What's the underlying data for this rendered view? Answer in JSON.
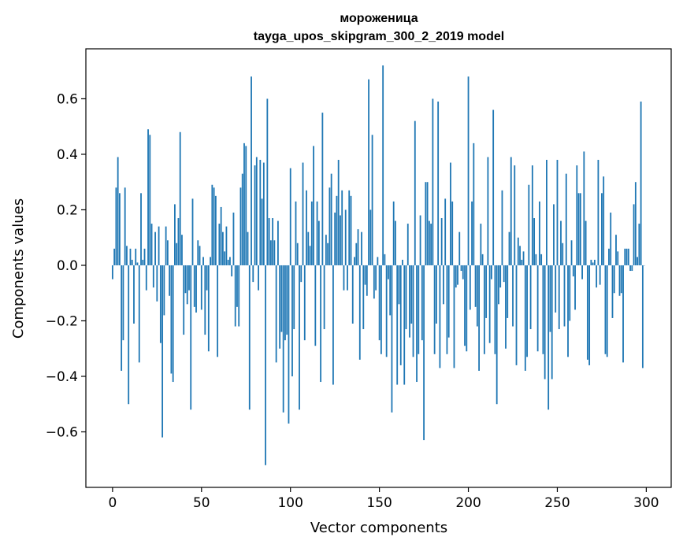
{
  "chart_data": {
    "type": "bar",
    "title": "мороженица",
    "subtitle": "tayga_upos_skipgram_300_2_2019 model",
    "xlabel": "Vector components",
    "ylabel": "Components values",
    "xlim": [
      -15,
      314
    ],
    "ylim": [
      -0.8,
      0.78
    ],
    "xticks": [
      0,
      50,
      100,
      150,
      200,
      250,
      300
    ],
    "xtick_labels": [
      "0",
      "50",
      "100",
      "150",
      "200",
      "250",
      "300"
    ],
    "yticks": [
      -0.6,
      -0.4,
      -0.2,
      0.0,
      0.2,
      0.4,
      0.6
    ],
    "ytick_labels": [
      "−0.6",
      "−0.4",
      "−0.2",
      "0.0",
      "0.2",
      "0.4",
      "0.6"
    ],
    "grid": false,
    "bar_color": "#1f77b4",
    "x_start": 0,
    "values": [
      -0.05,
      0.06,
      0.28,
      0.39,
      0.26,
      -0.38,
      -0.27,
      0.28,
      0.07,
      -0.5,
      0.06,
      0.02,
      -0.21,
      0.06,
      0.01,
      -0.35,
      0.26,
      0.02,
      0.06,
      -0.09,
      0.49,
      0.47,
      0.15,
      -0.08,
      0.12,
      -0.13,
      0.14,
      -0.28,
      -0.62,
      -0.18,
      0.14,
      0.09,
      -0.11,
      -0.39,
      -0.42,
      0.22,
      0.08,
      0.17,
      0.48,
      0.11,
      -0.25,
      -0.1,
      -0.14,
      -0.09,
      -0.52,
      0.24,
      -0.15,
      -0.17,
      0.09,
      0.07,
      -0.16,
      0.03,
      -0.25,
      -0.09,
      -0.31,
      0.03,
      0.29,
      0.28,
      0.25,
      -0.33,
      0.15,
      0.21,
      0.12,
      0.05,
      0.14,
      0.02,
      0.03,
      -0.04,
      0.19,
      -0.22,
      -0.15,
      -0.22,
      0.28,
      0.33,
      0.44,
      0.43,
      0.12,
      -0.52,
      0.68,
      -0.06,
      0.36,
      0.39,
      -0.09,
      0.38,
      0.24,
      0.37,
      -0.72,
      0.6,
      0.17,
      0.09,
      0.17,
      0.09,
      -0.35,
      0.16,
      -0.3,
      -0.24,
      -0.53,
      -0.27,
      -0.25,
      -0.57,
      0.35,
      -0.4,
      -0.23,
      0.23,
      0.08,
      -0.52,
      -0.06,
      0.37,
      -0.27,
      0.27,
      0.12,
      0.07,
      0.23,
      0.43,
      -0.29,
      0.23,
      0.16,
      -0.42,
      0.55,
      -0.23,
      0.11,
      0.08,
      0.28,
      0.33,
      -0.43,
      0.19,
      0.25,
      0.38,
      0.18,
      0.27,
      -0.09,
      0.2,
      -0.09,
      0.27,
      0.25,
      -0.21,
      0.03,
      0.08,
      0.13,
      -0.34,
      0.12,
      -0.23,
      -0.07,
      -0.11,
      0.67,
      0.2,
      0.47,
      -0.12,
      -0.09,
      0.03,
      -0.27,
      -0.32,
      0.72,
      0.04,
      -0.33,
      -0.05,
      -0.18,
      -0.53,
      0.23,
      0.16,
      -0.43,
      -0.14,
      -0.36,
      0.02,
      -0.43,
      -0.23,
      0.15,
      -0.26,
      -0.21,
      -0.33,
      0.52,
      -0.42,
      -0.32,
      0.18,
      -0.27,
      -0.63,
      0.3,
      0.3,
      0.16,
      0.15,
      0.6,
      -0.32,
      -0.21,
      0.59,
      -0.37,
      0.17,
      -0.14,
      0.24,
      -0.32,
      -0.26,
      0.37,
      0.23,
      -0.37,
      -0.08,
      -0.07,
      0.12,
      -0.02,
      -0.05,
      -0.29,
      -0.31,
      0.68,
      -0.16,
      0.23,
      0.44,
      -0.15,
      -0.22,
      -0.38,
      0.15,
      0.04,
      -0.32,
      -0.19,
      0.39,
      -0.28,
      -0.05,
      0.56,
      -0.32,
      -0.5,
      -0.14,
      -0.08,
      0.27,
      -0.06,
      -0.3,
      -0.19,
      0.12,
      0.39,
      -0.22,
      0.36,
      -0.36,
      0.1,
      0.07,
      0.02,
      0.05,
      -0.38,
      -0.33,
      0.29,
      -0.23,
      0.36,
      0.17,
      0.04,
      -0.31,
      0.23,
      0.04,
      -0.32,
      -0.41,
      0.38,
      -0.52,
      -0.24,
      -0.41,
      0.22,
      -0.17,
      0.38,
      -0.23,
      0.16,
      0.08,
      -0.22,
      0.33,
      -0.33,
      -0.2,
      0.09,
      -0.04,
      -0.16,
      0.36,
      0.26,
      0.26,
      -0.05,
      0.41,
      0.16,
      -0.34,
      -0.36,
      0.02,
      0.01,
      0.02,
      -0.08,
      0.38,
      -0.07,
      0.26,
      0.32,
      -0.32,
      -0.33,
      0.06,
      0.19,
      -0.19,
      -0.1,
      0.11,
      0.05,
      -0.11,
      -0.1,
      -0.35,
      0.06,
      0.06,
      0.06,
      -0.02,
      -0.02,
      0.22,
      0.3,
      0.03,
      0.15,
      0.59,
      -0.37,
      0.0
    ]
  }
}
